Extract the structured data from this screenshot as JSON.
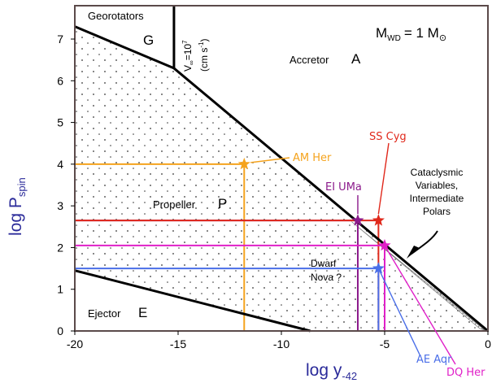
{
  "chart_data": {
    "type": "scatter",
    "title": "",
    "xlabel": "log y",
    "xlabel_sub": "-42",
    "ylabel": "log P",
    "ylabel_sub": "spin",
    "xlim": [
      -20,
      0
    ],
    "ylim": [
      0,
      7.8
    ],
    "xticks": [
      -20,
      -15,
      -10,
      -5,
      0
    ],
    "yticks": [
      0,
      1,
      2,
      3,
      4,
      5,
      6,
      7
    ],
    "mass_label": "M",
    "mass_sub": "WD",
    "mass_value": "= 1 M",
    "sun_symbol": "⊙",
    "velocity_label": {
      "v": "V",
      "sub": "∞",
      "eq": "=10",
      "sup": "7",
      "units": "(cm s",
      "units_sup": "-1",
      "units_end": ")"
    },
    "regions": [
      {
        "name": "Georotators",
        "letter": "G"
      },
      {
        "name": "Accretor",
        "letter": "A"
      },
      {
        "name": "Propeller",
        "letter": "P"
      },
      {
        "name": "Ejector",
        "letter": "E"
      }
    ],
    "boundaries": [
      {
        "name": "G/A vertical",
        "x": [
          -15.2,
          -15.2
        ],
        "y": [
          7.8,
          6.3
        ]
      },
      {
        "name": "G/P line",
        "x": [
          -20,
          -15.2
        ],
        "y": [
          7.3,
          6.3
        ]
      },
      {
        "name": "P/A line",
        "x": [
          -15.2,
          0
        ],
        "y": [
          6.3,
          0
        ]
      },
      {
        "name": "P/E line",
        "x": [
          -20,
          -8.6
        ],
        "y": [
          1.45,
          0
        ]
      }
    ],
    "annotations": [
      {
        "text": "Cataclysmic",
        "line": 1
      },
      {
        "text": "Variables,",
        "line": 2
      },
      {
        "text": "Intermediate",
        "line": 3
      },
      {
        "text": "Polars",
        "line": 4
      },
      {
        "text": "Dwarf",
        "line": 1
      },
      {
        "text": "Nova ?",
        "line": 2
      }
    ],
    "series": [
      {
        "name": "AM Her",
        "color": "#f5a31d",
        "x": -11.8,
        "y": 4.0
      },
      {
        "name": "EI UMa",
        "color": "#8b1a8b",
        "x": -6.3,
        "y": 2.65
      },
      {
        "name": "SS Cyg",
        "color": "#e0281b",
        "x": -5.3,
        "y": 2.65
      },
      {
        "name": "DQ Her",
        "color": "#e020c8",
        "x": -5.0,
        "y": 2.05
      },
      {
        "name": "AE Aqr",
        "color": "#4a6ee8",
        "x": -5.3,
        "y": 1.5
      }
    ]
  },
  "colors": {
    "dark_outline": "#5b4a4a",
    "axis_label": "#2b2b9a"
  }
}
